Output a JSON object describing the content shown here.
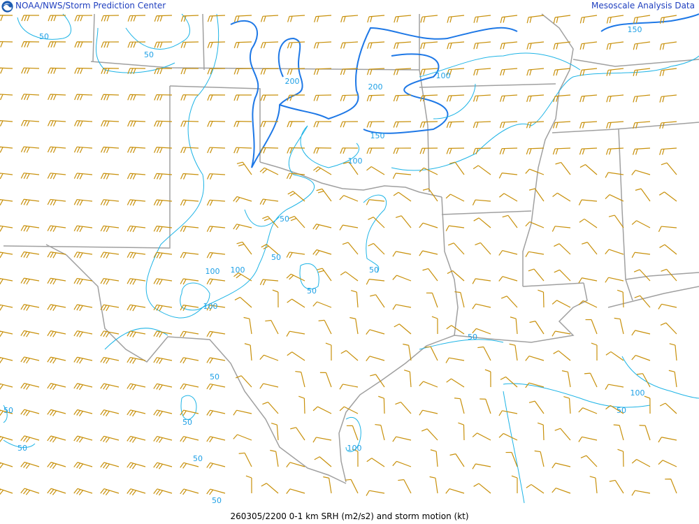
{
  "header": {
    "left_title": "NOAA/NWS/Storm Prediction Center",
    "right_title": "Mesoscale Analysis Data",
    "logo_icon": "noaa-logo-icon"
  },
  "footer": {
    "caption": "260305/2200 0-1 km SRH (m2/s2) and storm motion (kt)"
  },
  "colors": {
    "strong_contour": "#1e78e6",
    "weak_contour": "#1eb4e6",
    "barbs": "#c8900a",
    "borders": "#a0a0a0",
    "header_text": "#1f3fbf"
  },
  "contour_labels": [
    "50",
    "50",
    "200",
    "200",
    "100",
    "150",
    "150",
    "100",
    "50",
    "50",
    "100",
    "100",
    "50",
    "50",
    "100",
    "50",
    "50",
    "50",
    "50",
    "50",
    "50",
    "100",
    "100",
    "50",
    "50"
  ]
}
